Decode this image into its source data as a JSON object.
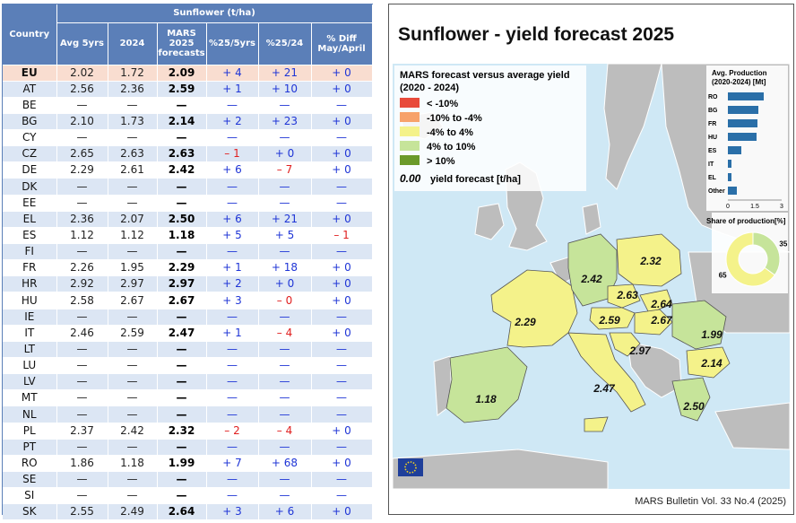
{
  "table": {
    "group_header": "Sunflower (t/ha)",
    "columns": {
      "country": "Country",
      "avg5": "Avg 5yrs",
      "y2024": "2024",
      "mars": [
        "MARS",
        "2025",
        "forecasts"
      ],
      "pct5": "%25/5yrs",
      "pct24": "%25/24",
      "diff": [
        "% Diff",
        "May/April"
      ]
    },
    "rows": [
      {
        "country": "EU",
        "avg5": "2.02",
        "y2024": "1.72",
        "mars": "2.09",
        "pct5": "+ 4",
        "pct24": "+ 21",
        "diff": "+ 0"
      },
      {
        "country": "AT",
        "avg5": "2.56",
        "y2024": "2.36",
        "mars": "2.59",
        "pct5": "+ 1",
        "pct24": "+ 10",
        "diff": "+ 0"
      },
      {
        "country": "BE",
        "avg5": "—",
        "y2024": "—",
        "mars": "—",
        "pct5": "—",
        "pct24": "—",
        "diff": "—"
      },
      {
        "country": "BG",
        "avg5": "2.10",
        "y2024": "1.73",
        "mars": "2.14",
        "pct5": "+ 2",
        "pct24": "+ 23",
        "diff": "+ 0"
      },
      {
        "country": "CY",
        "avg5": "—",
        "y2024": "—",
        "mars": "—",
        "pct5": "—",
        "pct24": "—",
        "diff": "—"
      },
      {
        "country": "CZ",
        "avg5": "2.65",
        "y2024": "2.63",
        "mars": "2.63",
        "pct5": "– 1",
        "pct24": "+ 0",
        "diff": "+ 0"
      },
      {
        "country": "DE",
        "avg5": "2.29",
        "y2024": "2.61",
        "mars": "2.42",
        "pct5": "+ 6",
        "pct24": "– 7",
        "diff": "+ 0"
      },
      {
        "country": "DK",
        "avg5": "—",
        "y2024": "—",
        "mars": "—",
        "pct5": "—",
        "pct24": "—",
        "diff": "—"
      },
      {
        "country": "EE",
        "avg5": "—",
        "y2024": "—",
        "mars": "—",
        "pct5": "—",
        "pct24": "—",
        "diff": "—"
      },
      {
        "country": "EL",
        "avg5": "2.36",
        "y2024": "2.07",
        "mars": "2.50",
        "pct5": "+ 6",
        "pct24": "+ 21",
        "diff": "+ 0"
      },
      {
        "country": "ES",
        "avg5": "1.12",
        "y2024": "1.12",
        "mars": "1.18",
        "pct5": "+ 5",
        "pct24": "+ 5",
        "diff": "– 1"
      },
      {
        "country": "FI",
        "avg5": "—",
        "y2024": "—",
        "mars": "—",
        "pct5": "—",
        "pct24": "—",
        "diff": "—"
      },
      {
        "country": "FR",
        "avg5": "2.26",
        "y2024": "1.95",
        "mars": "2.29",
        "pct5": "+ 1",
        "pct24": "+ 18",
        "diff": "+ 0"
      },
      {
        "country": "HR",
        "avg5": "2.92",
        "y2024": "2.97",
        "mars": "2.97",
        "pct5": "+ 2",
        "pct24": "+ 0",
        "diff": "+ 0"
      },
      {
        "country": "HU",
        "avg5": "2.58",
        "y2024": "2.67",
        "mars": "2.67",
        "pct5": "+ 3",
        "pct24": "– 0",
        "diff": "+ 0"
      },
      {
        "country": "IE",
        "avg5": "—",
        "y2024": "—",
        "mars": "—",
        "pct5": "—",
        "pct24": "—",
        "diff": "—"
      },
      {
        "country": "IT",
        "avg5": "2.46",
        "y2024": "2.59",
        "mars": "2.47",
        "pct5": "+ 1",
        "pct24": "– 4",
        "diff": "+ 0"
      },
      {
        "country": "LT",
        "avg5": "—",
        "y2024": "—",
        "mars": "—",
        "pct5": "—",
        "pct24": "—",
        "diff": "—"
      },
      {
        "country": "LU",
        "avg5": "—",
        "y2024": "—",
        "mars": "—",
        "pct5": "—",
        "pct24": "—",
        "diff": "—"
      },
      {
        "country": "LV",
        "avg5": "—",
        "y2024": "—",
        "mars": "—",
        "pct5": "—",
        "pct24": "—",
        "diff": "—"
      },
      {
        "country": "MT",
        "avg5": "—",
        "y2024": "—",
        "mars": "—",
        "pct5": "—",
        "pct24": "—",
        "diff": "—"
      },
      {
        "country": "NL",
        "avg5": "—",
        "y2024": "—",
        "mars": "—",
        "pct5": "—",
        "pct24": "—",
        "diff": "—"
      },
      {
        "country": "PL",
        "avg5": "2.37",
        "y2024": "2.42",
        "mars": "2.32",
        "pct5": "– 2",
        "pct24": "– 4",
        "diff": "+ 0"
      },
      {
        "country": "PT",
        "avg5": "—",
        "y2024": "—",
        "mars": "—",
        "pct5": "—",
        "pct24": "—",
        "diff": "—"
      },
      {
        "country": "RO",
        "avg5": "1.86",
        "y2024": "1.18",
        "mars": "1.99",
        "pct5": "+ 7",
        "pct24": "+ 68",
        "diff": "+ 0"
      },
      {
        "country": "SE",
        "avg5": "—",
        "y2024": "—",
        "mars": "—",
        "pct5": "—",
        "pct24": "—",
        "diff": "—"
      },
      {
        "country": "SI",
        "avg5": "—",
        "y2024": "—",
        "mars": "—",
        "pct5": "—",
        "pct24": "—",
        "diff": "—"
      },
      {
        "country": "SK",
        "avg5": "2.55",
        "y2024": "2.49",
        "mars": "2.64",
        "pct5": "+ 3",
        "pct24": "+ 6",
        "diff": "+ 0"
      }
    ]
  },
  "map": {
    "title": "Sunflower - yield forecast 2025",
    "legend": {
      "title": "MARS forecast versus average yield",
      "subtitle": "(2020 - 2024)",
      "items": [
        {
          "label": "< -10%",
          "color": "#e84a3a"
        },
        {
          "label": "-10% to -4%",
          "color": "#f7a26a"
        },
        {
          "label": "-4% to 4%",
          "color": "#f4f28a"
        },
        {
          "label": "4% to 10%",
          "color": "#c6e49a"
        },
        {
          "label": "> 10%",
          "color": "#6b9a2a"
        }
      ],
      "value_sample": "0.00",
      "value_caption": "yield forecast [t/ha]"
    },
    "colors": {
      "sea": "#cfe8f5",
      "non_eu": "#bdbdbd",
      "no_data": "#ffffff",
      "border": "#555555",
      "bar": "#2a6fa8",
      "pie_a": "#c6e49a",
      "pie_b": "#f4f28a"
    },
    "production": {
      "title": "Avg. Production",
      "subtitle": "(2020-2024) [Mt]",
      "items": [
        {
          "label": "RO",
          "value": 2.0
        },
        {
          "label": "BG",
          "value": 1.7
        },
        {
          "label": "FR",
          "value": 1.65
        },
        {
          "label": "HU",
          "value": 1.6
        },
        {
          "label": "ES",
          "value": 0.75
        },
        {
          "label": "IT",
          "value": 0.2
        },
        {
          "label": "EL",
          "value": 0.2
        },
        {
          "label": "Other",
          "value": 0.5
        }
      ],
      "axis_ticks": [
        "0",
        "1.5",
        "3"
      ],
      "axis_values": [
        0,
        1.5,
        3
      ]
    },
    "share": {
      "title": "Share of production[%]",
      "slices": [
        {
          "label": "35",
          "value": 35
        },
        {
          "label": "65",
          "value": 65
        }
      ]
    },
    "regions": [
      {
        "code": "ES",
        "value": "1.18",
        "class": "4% to 10%"
      },
      {
        "code": "FR",
        "value": "2.29",
        "class": "-4% to 4%"
      },
      {
        "code": "DE",
        "value": "2.42",
        "class": "4% to 10%"
      },
      {
        "code": "PL",
        "value": "2.32",
        "class": "-4% to 4%"
      },
      {
        "code": "CZ",
        "value": "2.63",
        "class": "-4% to 4%"
      },
      {
        "code": "SK",
        "value": "2.64",
        "class": "-4% to 4%"
      },
      {
        "code": "AT",
        "value": "2.59",
        "class": "-4% to 4%"
      },
      {
        "code": "HU",
        "value": "2.67",
        "class": "-4% to 4%"
      },
      {
        "code": "RO",
        "value": "1.99",
        "class": "4% to 10%"
      },
      {
        "code": "HR",
        "value": "2.97",
        "class": "-4% to 4%"
      },
      {
        "code": "IT",
        "value": "2.47",
        "class": "-4% to 4%"
      },
      {
        "code": "BG",
        "value": "2.14",
        "class": "-4% to 4%"
      },
      {
        "code": "EL",
        "value": "2.50",
        "class": "4% to 10%"
      }
    ],
    "footer": "MARS Bulletin Vol. 33 No.4 (2025)"
  }
}
